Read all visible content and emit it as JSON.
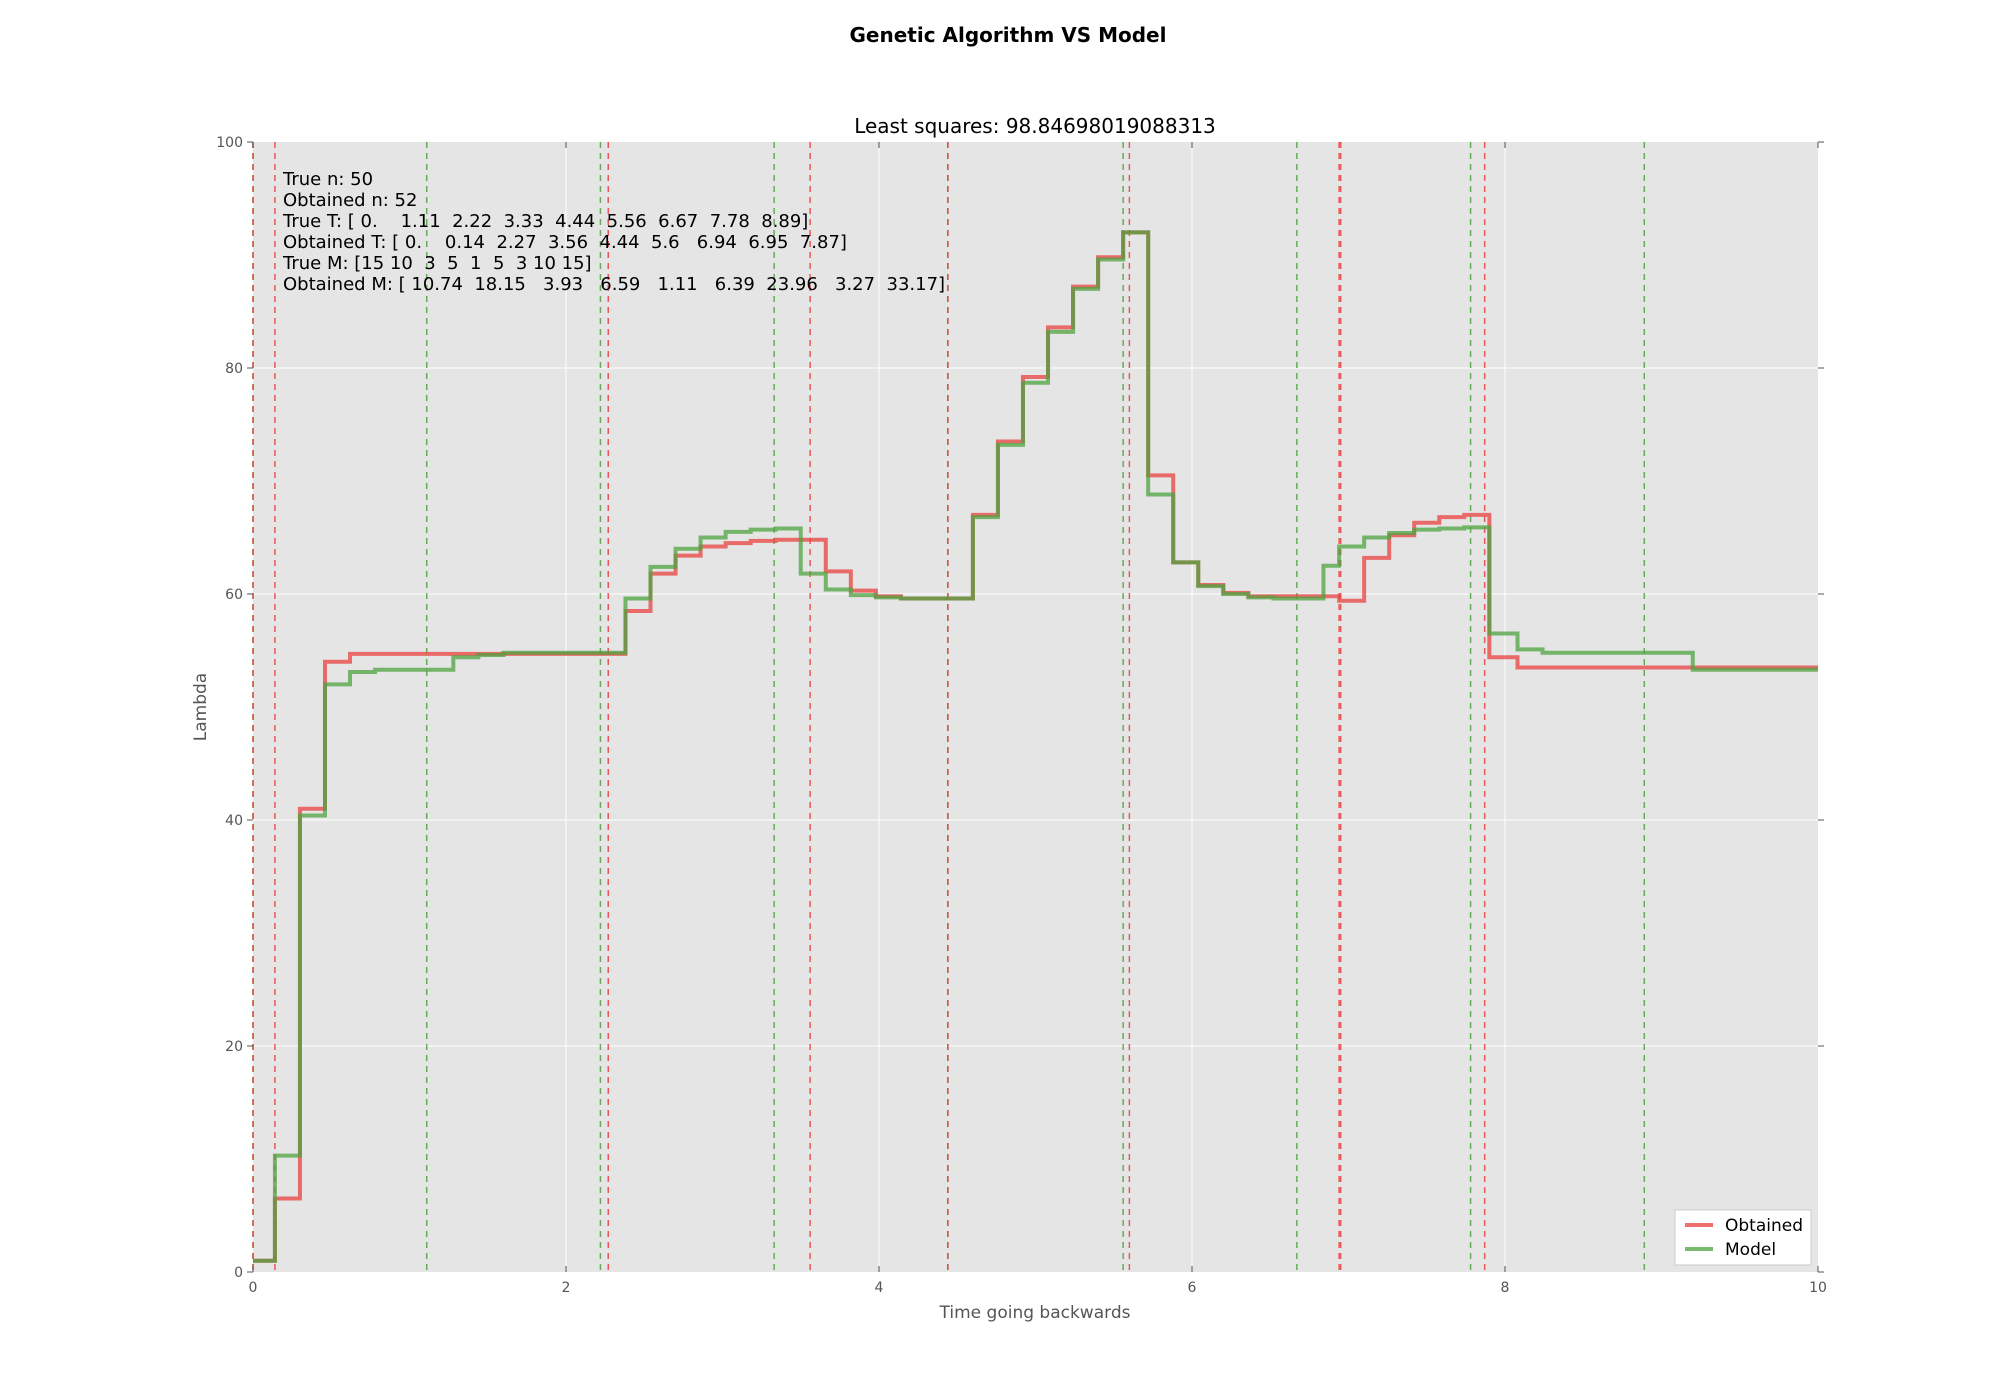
{
  "chart_data": {
    "type": "line",
    "suptitle": "Genetic Algorithm VS Model",
    "title": "Least squares: 98.84698019088313",
    "xlabel": "Time going backwards",
    "ylabel": "Lambda",
    "xlim": [
      0,
      10
    ],
    "ylim": [
      0,
      100
    ],
    "xticks": [
      0,
      2,
      4,
      6,
      8,
      10
    ],
    "yticks": [
      0,
      20,
      40,
      60,
      80,
      100
    ],
    "grid": true,
    "legend_position": "lower-right",
    "annotations": [
      "True n: 50",
      "Obtained n: 52",
      "True T: [ 0.    1.11  2.22  3.33  4.44  5.56  6.67  7.78  8.89]",
      "Obtained T: [ 0.    0.14  2.27  3.56  4.44  5.6   6.94  6.95  7.87]",
      "True M: [15 10  3  5  1  5  3 10 15]",
      "Obtained M: [ 10.74  18.15   3.93   6.59   1.11   6.39  23.96   3.27  33.17]"
    ],
    "series": [
      {
        "name": "Obtained",
        "color": "#e8403f",
        "x": [
          0,
          0.14,
          0.3,
          0.46,
          0.62,
          0.78,
          1.28,
          1.44,
          1.6,
          2.38,
          2.54,
          2.7,
          2.86,
          3.02,
          3.18,
          3.34,
          3.5,
          3.66,
          3.82,
          3.98,
          4.14,
          4.3,
          4.46,
          4.6,
          4.76,
          4.92,
          5.08,
          5.24,
          5.4,
          5.56,
          5.72,
          5.88,
          6.04,
          6.2,
          6.36,
          6.52,
          6.68,
          6.84,
          6.94,
          7.1,
          7.26,
          7.42,
          7.58,
          7.74,
          7.9,
          8.08,
          8.24,
          9.04,
          9.2,
          10
        ],
        "y": [
          1,
          6.5,
          41,
          54,
          54.7,
          54.7,
          54.7,
          54.7,
          54.7,
          58.5,
          61.8,
          63.4,
          64.2,
          64.5,
          64.7,
          64.8,
          64.8,
          62,
          60.3,
          59.8,
          59.6,
          59.6,
          59.6,
          67,
          73.5,
          79.2,
          83.6,
          87.2,
          89.8,
          92,
          70.5,
          62.8,
          60.8,
          60.1,
          59.8,
          59.8,
          59.8,
          59.8,
          59.4,
          63.2,
          65.2,
          66.3,
          66.8,
          67,
          54.4,
          53.5,
          53.5,
          53.5,
          53.5,
          53.5
        ]
      },
      {
        "name": "Model",
        "color": "#4ea33f",
        "x": [
          0,
          0.14,
          0.3,
          0.46,
          0.62,
          0.78,
          1.28,
          1.44,
          1.6,
          2.38,
          2.54,
          2.7,
          2.86,
          3.02,
          3.18,
          3.34,
          3.5,
          3.66,
          3.82,
          3.98,
          4.14,
          4.3,
          4.46,
          4.6,
          4.76,
          4.92,
          5.08,
          5.24,
          5.4,
          5.56,
          5.72,
          5.88,
          6.04,
          6.2,
          6.36,
          6.52,
          6.68,
          6.84,
          6.94,
          7.1,
          7.26,
          7.42,
          7.58,
          7.74,
          7.9,
          8.08,
          8.24,
          9.04,
          9.2,
          10
        ],
        "y": [
          1,
          10.3,
          40.4,
          52,
          53.1,
          53.3,
          54.4,
          54.6,
          54.8,
          59.6,
          62.4,
          64,
          65,
          65.5,
          65.7,
          65.8,
          61.8,
          60.4,
          59.9,
          59.7,
          59.6,
          59.6,
          59.6,
          66.8,
          73.2,
          78.7,
          83.2,
          87,
          89.6,
          92,
          68.8,
          62.8,
          60.7,
          60,
          59.7,
          59.6,
          59.6,
          62.5,
          64.2,
          65,
          65.4,
          65.7,
          65.8,
          65.9,
          56.5,
          55.1,
          54.8,
          54.8,
          53.3,
          53.3
        ]
      }
    ],
    "vlines": [
      {
        "name": "True T",
        "color": "#4ea33f",
        "x": [
          0,
          1.11,
          2.22,
          3.33,
          4.44,
          5.56,
          6.67,
          7.78,
          8.89
        ]
      },
      {
        "name": "Obtained T",
        "color": "#e8403f",
        "x": [
          0,
          0.14,
          2.27,
          3.56,
          4.44,
          5.6,
          6.94,
          6.95,
          7.87
        ]
      }
    ]
  }
}
